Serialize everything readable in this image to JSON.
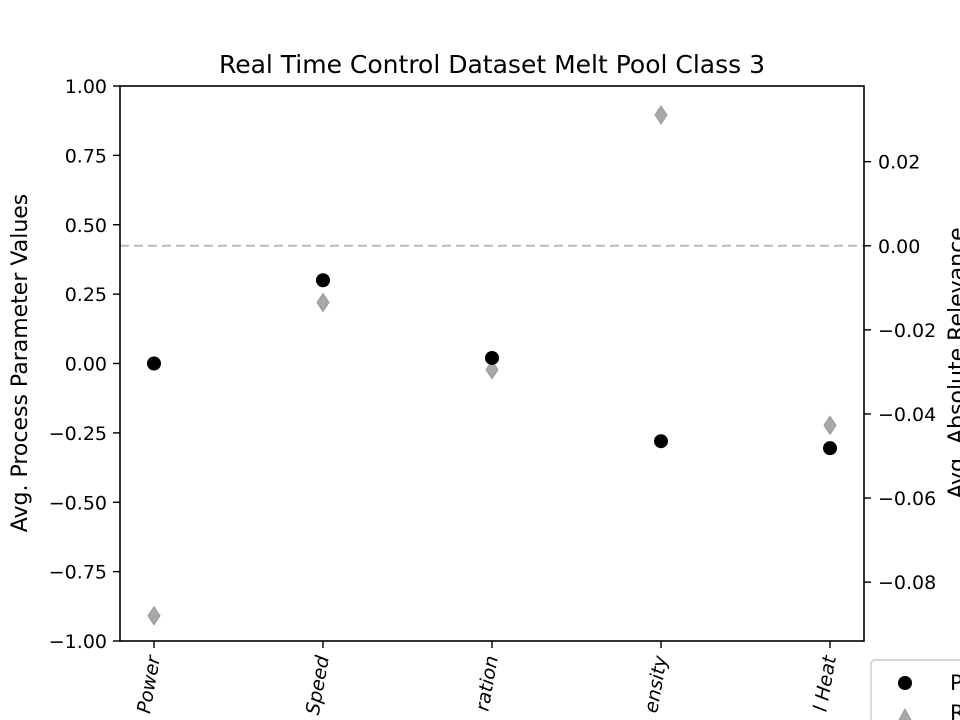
{
  "chart_data": {
    "type": "scatter",
    "title": "Real Time Control Dataset Melt Pool Class 3",
    "ylabel_left": "Avg. Process Parameter Values",
    "ylabel_right": "Avg. Absolute Relevance",
    "categories": [
      "Power",
      "Speed",
      "Duration",
      "Density",
      "Heat"
    ],
    "category_labels_visible": [
      "Power",
      "Speed",
      "ration",
      "ensity",
      "l Heat"
    ],
    "ylim_left": [
      -1.0,
      1.0
    ],
    "yticks_left": [
      1.0,
      0.75,
      0.5,
      0.25,
      0.0,
      -0.25,
      -0.5,
      -0.75,
      -1.0
    ],
    "ytick_labels_left": [
      "1.00",
      "0.75",
      "0.50",
      "0.25",
      "0.00",
      "−0.25",
      "−0.50",
      "−0.75",
      "−1.00"
    ],
    "ylim_right": [
      -0.094,
      0.038
    ],
    "yticks_right": [
      0.02,
      0.0,
      -0.02,
      -0.04,
      -0.06,
      -0.08
    ],
    "ytick_labels_right": [
      "0.02",
      "0.00",
      "−0.02",
      "−0.04",
      "−0.06",
      "−0.08"
    ],
    "reference_line": {
      "axis": "right",
      "value": 0.0,
      "style": "dashed",
      "color": "#bbbbbb"
    },
    "series": [
      {
        "name": "P",
        "axis": "left",
        "marker": "circle",
        "color": "#000000",
        "values": [
          0.0,
          0.3,
          0.02,
          -0.28,
          -0.305
        ]
      },
      {
        "name": "R",
        "axis": "right",
        "marker": "diamond",
        "color": "#a8a8a8",
        "values": [
          -0.088,
          -0.0135,
          -0.0295,
          0.0311,
          -0.0427
        ]
      }
    ],
    "legend": {
      "placement": "bottom-right",
      "entries_visible": [
        "P",
        "R"
      ]
    },
    "grid": false
  }
}
